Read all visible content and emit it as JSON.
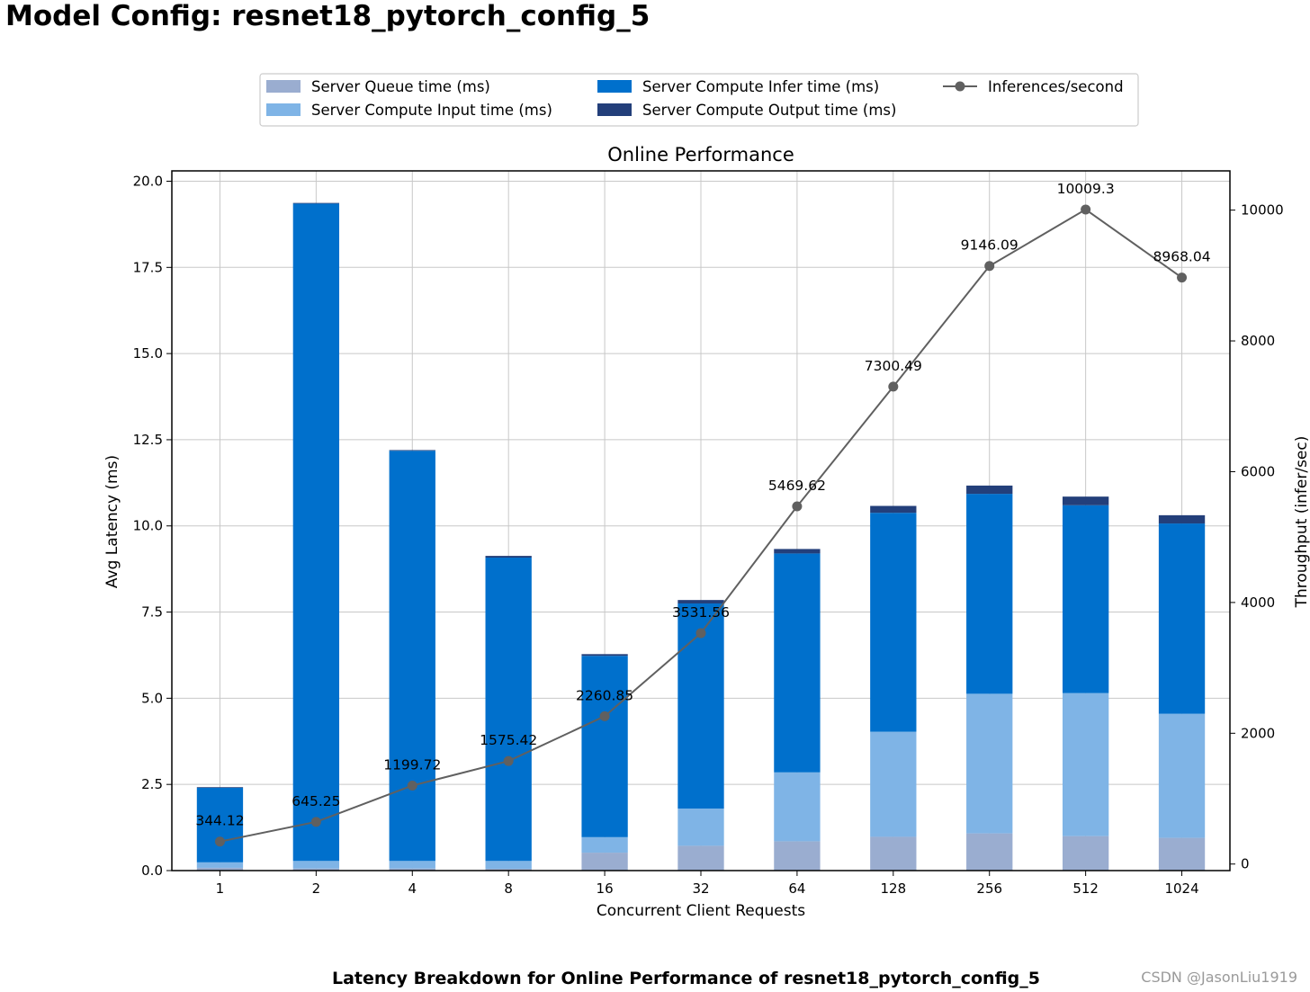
{
  "page": {
    "title": "Model Config: resnet18_pytorch_config_5",
    "caption": "Latency Breakdown for Online Performance of resnet18_pytorch_config_5",
    "watermark": "CSDN @JasonLiu1919"
  },
  "chart_data": {
    "type": "bar",
    "stacked": true,
    "title": "Online Performance",
    "xlabel": "Concurrent Client Requests",
    "ylabel": "Avg Latency (ms)",
    "y2label": "Throughput (infer/sec)",
    "ylim": [
      0,
      20.3
    ],
    "y2lim": [
      -100,
      10600
    ],
    "yticks": [
      "0.0",
      "2.5",
      "5.0",
      "7.5",
      "10.0",
      "12.5",
      "15.0",
      "17.5",
      "20.0"
    ],
    "y2ticks": [
      "0",
      "2000",
      "4000",
      "6000",
      "8000",
      "10000"
    ],
    "grid": true,
    "legend_position": "top-center",
    "categories": [
      "1",
      "2",
      "4",
      "8",
      "16",
      "32",
      "64",
      "128",
      "256",
      "512",
      "1024"
    ],
    "series": [
      {
        "name": "Server Queue time (ms)",
        "color": "#9aadd0",
        "values": [
          0.08,
          0.06,
          0.06,
          0.05,
          0.52,
          0.72,
          0.85,
          0.98,
          1.08,
          1.0,
          0.95
        ]
      },
      {
        "name": "Server Compute Input time (ms)",
        "color": "#7fb4e6",
        "values": [
          0.16,
          0.22,
          0.22,
          0.23,
          0.45,
          1.08,
          2.0,
          3.05,
          4.05,
          4.15,
          3.6
        ]
      },
      {
        "name": "Server Compute Infer time (ms)",
        "color": "#0070cc",
        "values": [
          2.16,
          19.07,
          11.9,
          8.8,
          5.26,
          5.95,
          6.35,
          6.35,
          5.8,
          5.45,
          5.52
        ]
      },
      {
        "name": "Server Compute Output time (ms)",
        "color": "#233f7a",
        "values": [
          0.02,
          0.02,
          0.02,
          0.05,
          0.05,
          0.1,
          0.13,
          0.2,
          0.24,
          0.25,
          0.24
        ]
      }
    ],
    "line": {
      "name": "Inferences/second",
      "color": "#606060",
      "values": [
        344.12,
        645.25,
        1199.72,
        1575.42,
        2260.85,
        3531.56,
        5469.62,
        7300.49,
        9146.09,
        10009.3,
        8968.04
      ],
      "labels": [
        "344.12",
        "645.25",
        "1199.72",
        "1575.42",
        "2260.85",
        "3531.56",
        "5469.62",
        "7300.49",
        "9146.09",
        "10009.3",
        "8968.04"
      ]
    }
  }
}
